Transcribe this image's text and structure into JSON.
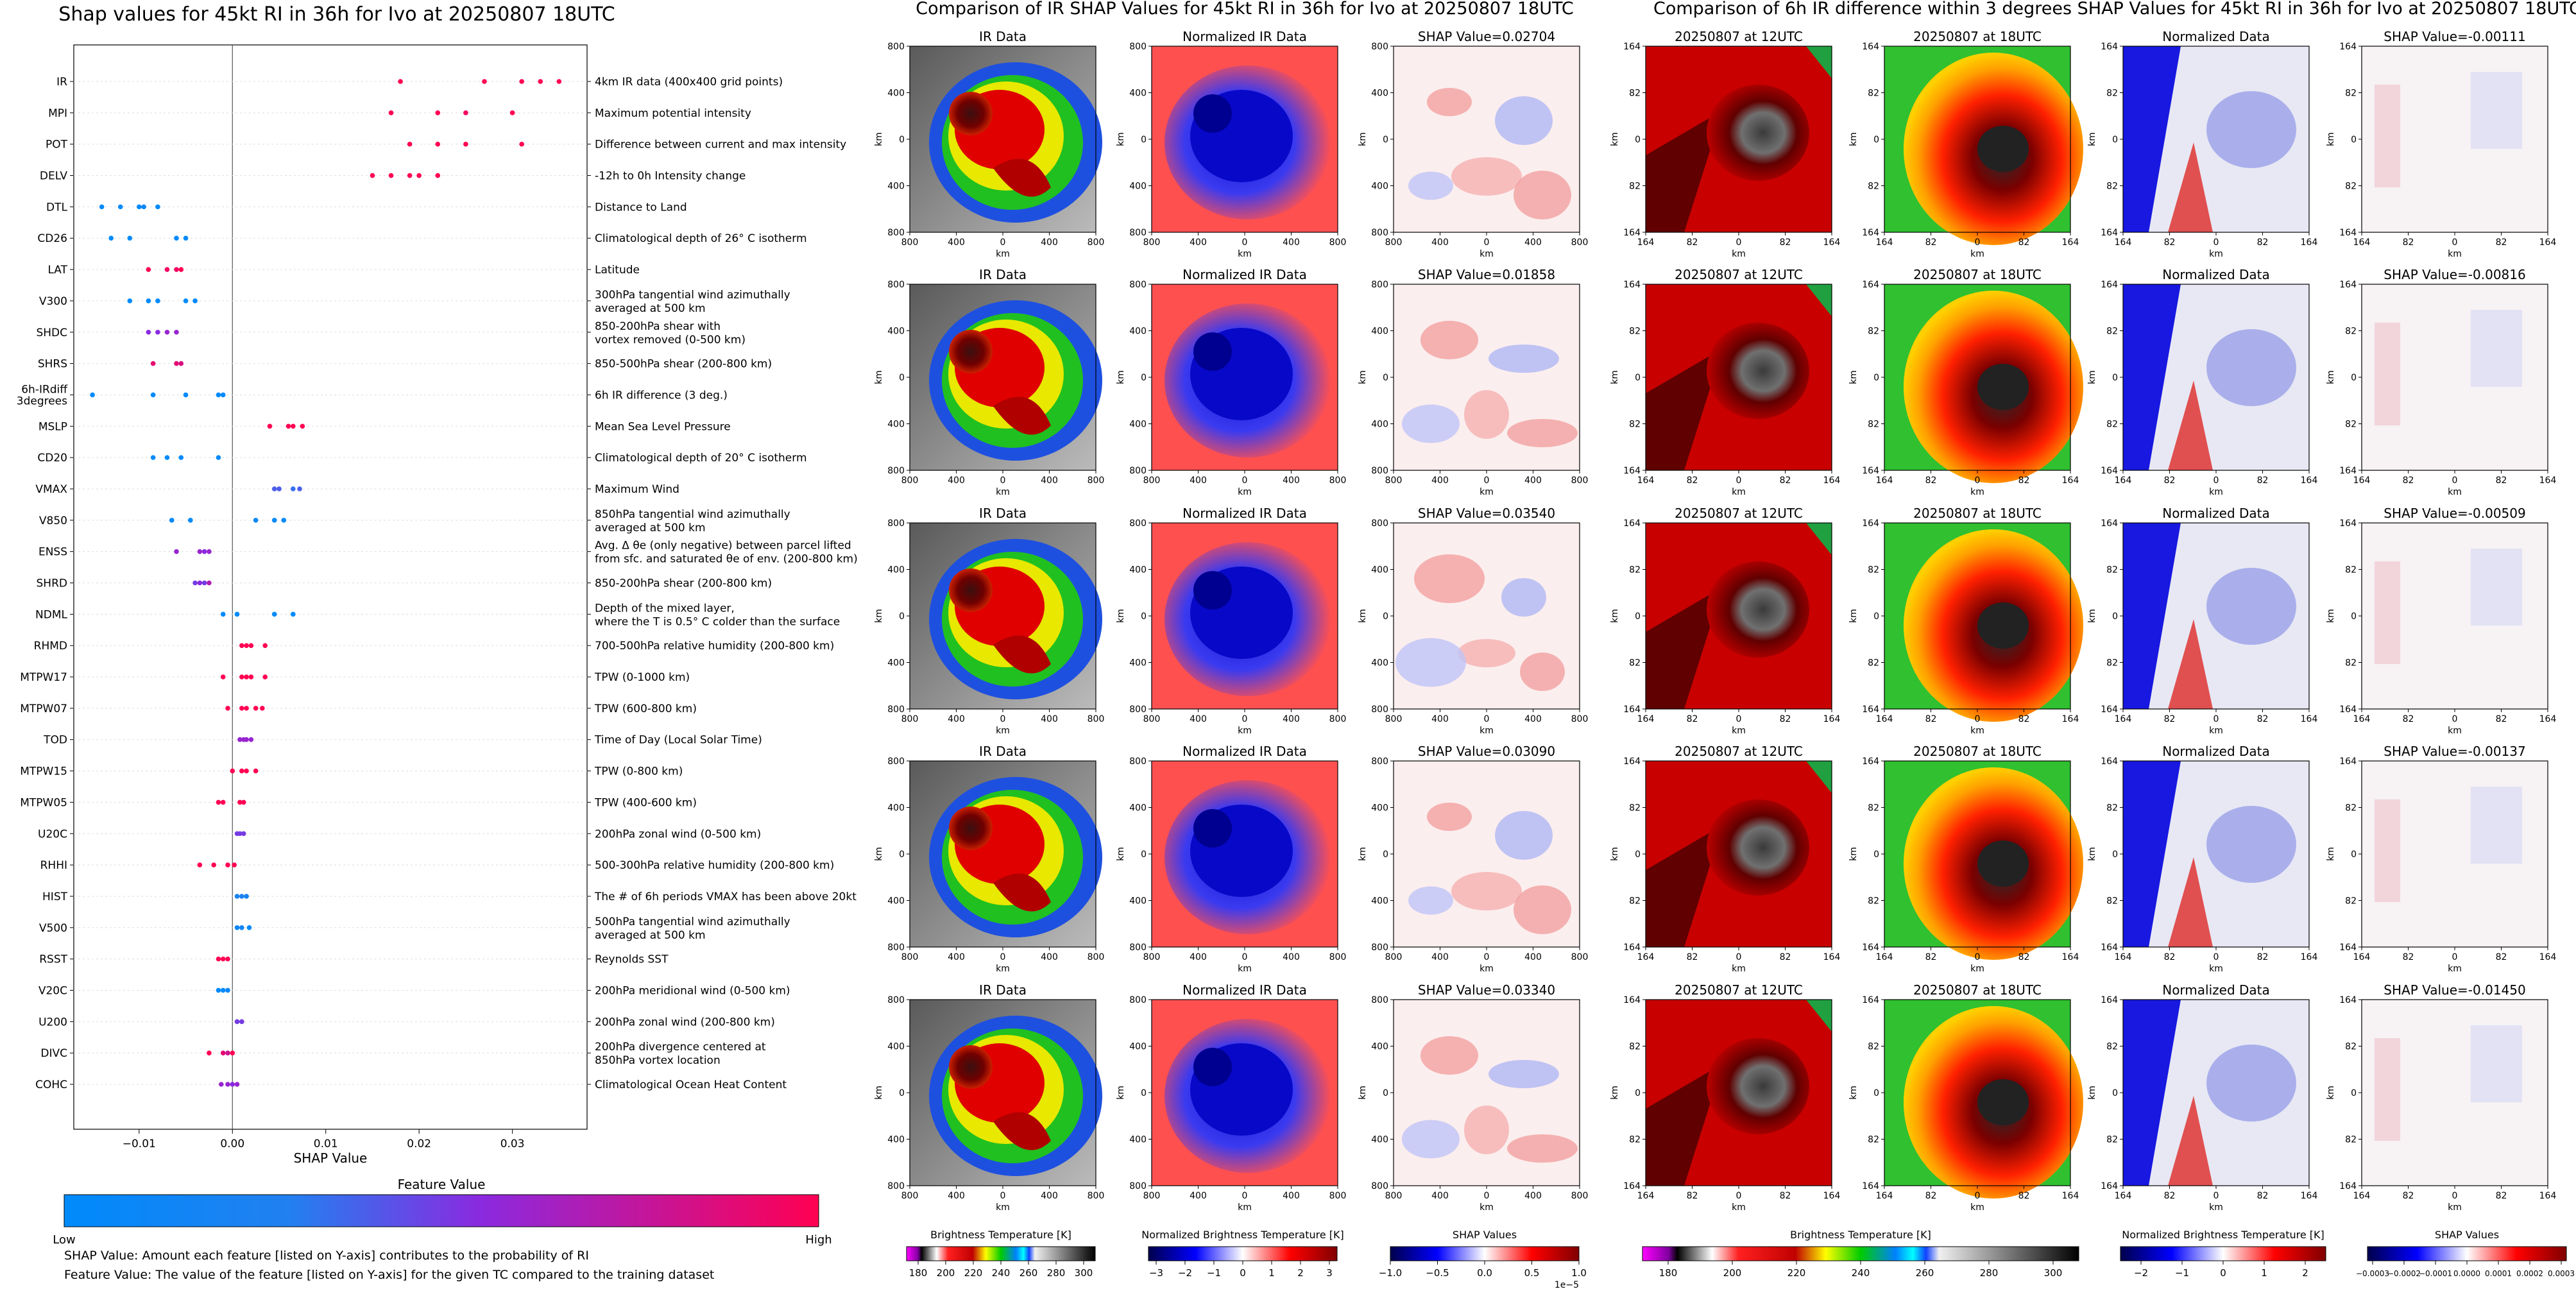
{
  "figure": {
    "left_title": "Shap values for 45kt RI in 36h for Ivo at 20250807 18UTC",
    "middle_title": "Comparison of IR SHAP Values for 45kt RI in 36h for Ivo at 20250807 18UTC",
    "right_title": "Comparison of 6h IR difference within 3 degrees SHAP Values for 45kt RI in 36h for Ivo at 20250807 18UTC",
    "footnote1": "SHAP Value: Amount each feature [listed on Y-axis] contributes to the probability of RI",
    "footnote2": "Feature Value: The value of the feature [listed on Y-axis] for the given TC compared to the training dataset"
  },
  "colorbars": {
    "feature_title": "Feature Value",
    "low": "Low",
    "high": "High",
    "bt_label": "Brightness Temperature [K]",
    "bt_ticks": [
      "180",
      "200",
      "220",
      "240",
      "260",
      "280",
      "300"
    ],
    "nbt_label": "Normalized Brightness Temperature [K]",
    "nbt_ticks": [
      "−3",
      "−2",
      "−1",
      "0",
      "1",
      "2",
      "3"
    ],
    "shap_label": "SHAP Values",
    "shap_ticks": [
      "−1.0",
      "−0.5",
      "0.0",
      "0.5",
      "1.0"
    ],
    "shap_exponent": "1e−5",
    "bt2_label": "Brightness Temperature [K]",
    "bt2_ticks": [
      "180",
      "200",
      "220",
      "240",
      "260",
      "280",
      "300"
    ],
    "nbt2_label": "Normalized Brightness Temperature [K]",
    "nbt2_ticks": [
      "−2",
      "−1",
      "0",
      "1",
      "2"
    ],
    "shap2_label": "SHAP Values",
    "shap2_ticks": [
      "−0.0003",
      "−0.0002",
      "−0.0001",
      "0.0000",
      "0.0001",
      "0.0002",
      "0.0003"
    ]
  },
  "ir_panels": {
    "ir_title": "IR Data",
    "norm_title": "Normalized IR Data",
    "shap_titles": [
      "SHAP Value=0.02704",
      "SHAP Value=0.01858",
      "SHAP Value=0.03540",
      "SHAP Value=0.03090",
      "SHAP Value=0.03340"
    ],
    "axis_label": "km",
    "ticks": [
      "800",
      "400",
      "0",
      "400",
      "800"
    ]
  },
  "diff_panels": {
    "t12_title": "20250807 at 12UTC",
    "t18_title": "20250807 at 18UTC",
    "norm_title": "Normalized Data",
    "shap_titles": [
      "SHAP Value=-0.00111",
      "SHAP Value=-0.00816",
      "SHAP Value=-0.00509",
      "SHAP Value=-0.00137",
      "SHAP Value=-0.01450"
    ],
    "axis_label": "km",
    "ticks": [
      "164",
      "82",
      "0",
      "82",
      "164"
    ]
  },
  "chart_data": {
    "type": "scatter",
    "title": "Shap values for 45kt RI in 36h for Ivo at 20250807 18UTC",
    "xlabel": "SHAP Value",
    "xlim": [
      -0.017,
      0.038
    ],
    "xticks": [
      -0.01,
      0.0,
      0.01,
      0.02,
      0.03
    ],
    "xtick_labels": [
      "−0.01",
      "0.00",
      "0.01",
      "0.02",
      "0.03"
    ],
    "features": [
      {
        "name": "IR",
        "desc": [
          "4km IR data (400x400 grid points)"
        ],
        "shap": [
          0.018,
          0.027,
          0.031,
          0.033,
          0.035
        ],
        "fv": [
          1,
          1,
          1,
          1,
          1
        ]
      },
      {
        "name": "MPI",
        "desc": [
          "Maximum potential intensity"
        ],
        "shap": [
          0.017,
          0.022,
          0.025,
          0.03
        ],
        "fv": [
          1,
          1,
          0.95,
          1
        ]
      },
      {
        "name": "POT",
        "desc": [
          "Difference between current and max intensity"
        ],
        "shap": [
          0.019,
          0.022,
          0.025,
          0.031
        ],
        "fv": [
          1,
          1,
          1,
          1
        ]
      },
      {
        "name": "DELV",
        "desc": [
          "-12h to 0h Intensity change"
        ],
        "shap": [
          0.015,
          0.017,
          0.019,
          0.02,
          0.022
        ],
        "fv": [
          1,
          1,
          1,
          1,
          1
        ]
      },
      {
        "name": "DTL",
        "desc": [
          "Distance to Land"
        ],
        "shap": [
          -0.014,
          -0.012,
          -0.01,
          -0.0095,
          -0.008
        ],
        "fv": [
          0,
          0,
          0,
          0.05,
          0
        ]
      },
      {
        "name": "CD26",
        "desc": [
          "Climatological depth of 26° C isotherm"
        ],
        "shap": [
          -0.013,
          -0.011,
          -0.006,
          -0.005
        ],
        "fv": [
          0,
          0,
          0,
          0
        ]
      },
      {
        "name": "LAT",
        "desc": [
          "Latitude"
        ],
        "shap": [
          -0.009,
          -0.007,
          -0.006,
          -0.0055
        ],
        "fv": [
          1,
          0.95,
          0.95,
          1
        ]
      },
      {
        "name": "V300",
        "desc": [
          "300hPa tangential wind azimuthally",
          "averaged at 500 km"
        ],
        "shap": [
          -0.011,
          -0.009,
          -0.008,
          -0.005,
          -0.004
        ],
        "fv": [
          0,
          0,
          0,
          0,
          0.05
        ]
      },
      {
        "name": "SHDC",
        "desc": [
          "850-200hPa shear with",
          "vortex removed (0-500 km)"
        ],
        "shap": [
          -0.009,
          -0.008,
          -0.007,
          -0.006
        ],
        "fv": [
          0.55,
          0.55,
          0.6,
          0.6
        ]
      },
      {
        "name": "SHRS",
        "desc": [
          "850-500hPa shear (200-800 km)"
        ],
        "shap": [
          -0.0085,
          -0.006,
          -0.0055
        ],
        "fv": [
          0.9,
          0.9,
          0.85
        ]
      },
      {
        "name": "6h-IRdiff\n3degrees",
        "desc": [
          "6h IR difference (3 deg.)"
        ],
        "shap": [
          -0.015,
          -0.0085,
          -0.005,
          -0.0015,
          -0.001
        ],
        "fv": [
          0,
          0,
          0,
          0,
          0
        ]
      },
      {
        "name": "MSLP",
        "desc": [
          "Mean Sea Level Pressure"
        ],
        "shap": [
          0.004,
          0.006,
          0.0065,
          0.0075
        ],
        "fv": [
          1,
          1,
          1,
          1
        ]
      },
      {
        "name": "CD20",
        "desc": [
          "Climatological depth of 20° C isotherm"
        ],
        "shap": [
          -0.0085,
          -0.007,
          -0.0055,
          -0.0015
        ],
        "fv": [
          0,
          0,
          0,
          0
        ]
      },
      {
        "name": "VMAX",
        "desc": [
          "Maximum Wind"
        ],
        "shap": [
          0.0045,
          0.005,
          0.0065,
          0.0072
        ],
        "fv": [
          0.4,
          0.4,
          0.35,
          0.4
        ]
      },
      {
        "name": "V850",
        "desc": [
          "850hPa tangential wind azimuthally",
          "averaged at 500 km"
        ],
        "shap": [
          -0.0065,
          -0.0045,
          0.0025,
          0.0045,
          0.0055
        ],
        "fv": [
          0,
          0,
          0.1,
          0,
          0
        ]
      },
      {
        "name": "ENSS",
        "desc": [
          "Avg. Δ θe (only negative) between parcel lifted",
          "from sfc. and saturated θe of env. (200-800 km)"
        ],
        "shap": [
          -0.006,
          -0.0035,
          -0.003,
          -0.0025
        ],
        "fv": [
          0.6,
          0.6,
          0.55,
          0.6
        ]
      },
      {
        "name": "SHRD",
        "desc": [
          "850-200hPa shear (200-800 km)"
        ],
        "shap": [
          -0.004,
          -0.0035,
          -0.003,
          -0.0025
        ],
        "fv": [
          0.5,
          0.55,
          0.5,
          0.7
        ]
      },
      {
        "name": "NDML",
        "desc": [
          "Depth of the mixed layer,",
          "where the T is 0.5° C colder than the surface"
        ],
        "shap": [
          -0.001,
          0.0005,
          0.0045,
          0.0065
        ],
        "fv": [
          0,
          0,
          0,
          0
        ]
      },
      {
        "name": "RHMD",
        "desc": [
          "700-500hPa relative humidity (200-800 km)"
        ],
        "shap": [
          0.001,
          0.0015,
          0.002,
          0.0035
        ],
        "fv": [
          1,
          1,
          1,
          1
        ]
      },
      {
        "name": "MTPW17",
        "desc": [
          "TPW (0-1000 km)"
        ],
        "shap": [
          -0.001,
          0.001,
          0.0015,
          0.002,
          0.0035
        ],
        "fv": [
          1,
          1,
          1,
          1,
          1
        ]
      },
      {
        "name": "MTPW07",
        "desc": [
          "TPW (600-800 km)"
        ],
        "shap": [
          -0.0005,
          0.001,
          0.0015,
          0.0025,
          0.0032
        ],
        "fv": [
          1,
          1,
          1,
          1,
          1
        ]
      },
      {
        "name": "TOD",
        "desc": [
          "Time of Day (Local Solar Time)"
        ],
        "shap": [
          0.0008,
          0.0012,
          0.0015,
          0.002
        ],
        "fv": [
          0.6,
          0.6,
          0.6,
          0.6
        ]
      },
      {
        "name": "MTPW15",
        "desc": [
          "TPW (0-800 km)"
        ],
        "shap": [
          0.0,
          0.001,
          0.0015,
          0.0025
        ],
        "fv": [
          1,
          1,
          1,
          1
        ]
      },
      {
        "name": "MTPW05",
        "desc": [
          "TPW (400-600 km)"
        ],
        "shap": [
          -0.0015,
          -0.001,
          0.0008,
          0.0012
        ],
        "fv": [
          1,
          1,
          1,
          1
        ]
      },
      {
        "name": "U20C",
        "desc": [
          "200hPa zonal wind (0-500 km)"
        ],
        "shap": [
          0.0005,
          0.0008,
          0.0012
        ],
        "fv": [
          0.5,
          0.5,
          0.5
        ]
      },
      {
        "name": "RHHI",
        "desc": [
          "500-300hPa relative humidity (200-800 km)"
        ],
        "shap": [
          -0.0035,
          -0.002,
          -0.0005,
          0.0002
        ],
        "fv": [
          1,
          1,
          1,
          1
        ]
      },
      {
        "name": "HIST",
        "desc": [
          "The # of 6h periods VMAX has been above 20kt"
        ],
        "shap": [
          0.0005,
          0.001,
          0.0015
        ],
        "fv": [
          0.25,
          0.25,
          0.2
        ]
      },
      {
        "name": "V500",
        "desc": [
          "500hPa tangential wind azimuthally",
          "averaged at 500 km"
        ],
        "shap": [
          0.0005,
          0.001,
          0.0018
        ],
        "fv": [
          0.1,
          0.15,
          0
        ]
      },
      {
        "name": "RSST",
        "desc": [
          "Reynolds SST"
        ],
        "shap": [
          -0.0015,
          -0.001,
          -0.0005
        ],
        "fv": [
          1,
          1,
          1
        ]
      },
      {
        "name": "V20C",
        "desc": [
          "200hPa meridional wind (0-500 km)"
        ],
        "shap": [
          -0.0015,
          -0.001,
          -0.0005
        ],
        "fv": [
          0,
          0,
          0.1
        ]
      },
      {
        "name": "U200",
        "desc": [
          "200hPa zonal wind (200-800 km)"
        ],
        "shap": [
          0.0005,
          0.001
        ],
        "fv": [
          0.5,
          0.5
        ]
      },
      {
        "name": "DIVC",
        "desc": [
          "200hPa divergence centered at",
          "850hPa vortex location"
        ],
        "shap": [
          -0.0025,
          -0.001,
          -0.0005,
          0.0
        ],
        "fv": [
          1,
          0.9,
          0.8,
          1
        ]
      },
      {
        "name": "COHC",
        "desc": [
          "Climatological Ocean Heat Content"
        ],
        "shap": [
          -0.0012,
          -0.0005,
          0.0,
          0.0005
        ],
        "fv": [
          0.6,
          0.6,
          0.55,
          0.6
        ]
      }
    ]
  }
}
